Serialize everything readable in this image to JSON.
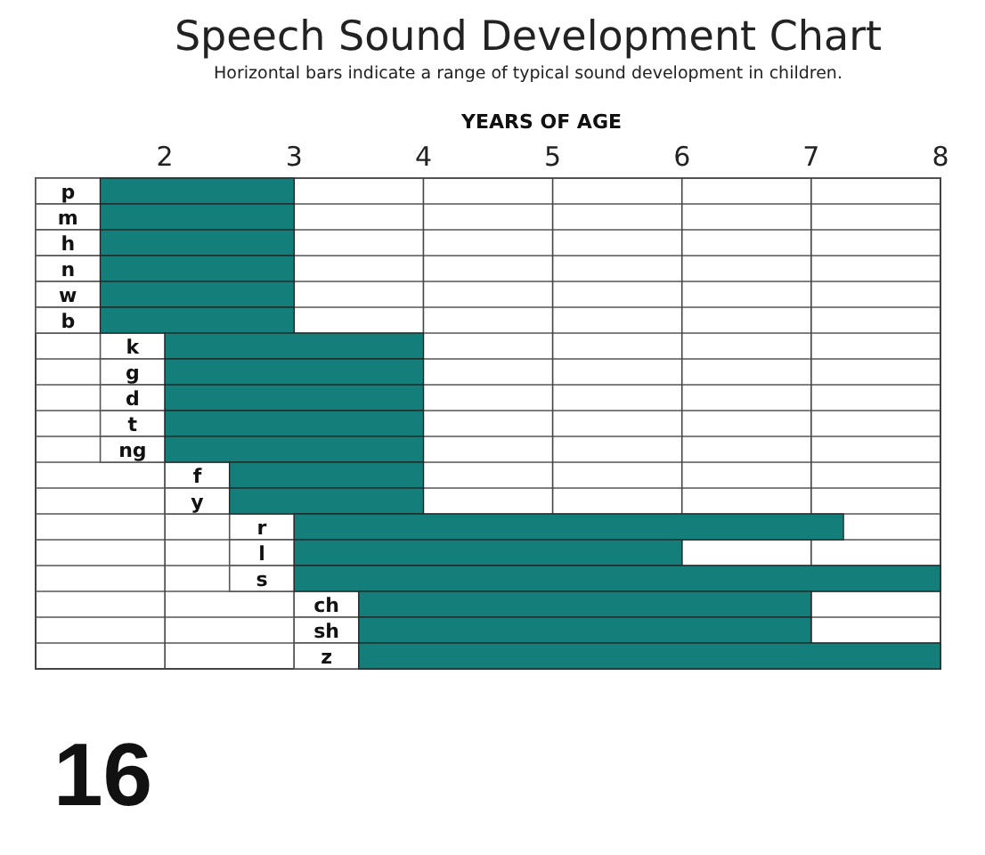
{
  "chart_data": {
    "type": "bar",
    "orientation": "horizontal",
    "title": "Speech Sound Development Chart",
    "subtitle": "Horizontal bars indicate a range of typical sound development in children.",
    "xlabel": "YEARS OF AGE",
    "categories": [
      "p",
      "m",
      "h",
      "n",
      "w",
      "b",
      "k",
      "g",
      "d",
      "t",
      "ng",
      "f",
      "y",
      "r",
      "l",
      "s",
      "ch",
      "sh",
      "z"
    ],
    "base": [
      1.5,
      1.5,
      1.5,
      1.5,
      1.5,
      1.5,
      2,
      2,
      2,
      2,
      2,
      2.5,
      2.5,
      3,
      3,
      3,
      3.5,
      3.5,
      3.5
    ],
    "values": [
      1.5,
      1.5,
      1.5,
      1.5,
      1.5,
      1.5,
      2,
      2,
      2,
      2,
      2,
      1.5,
      1.5,
      4.25,
      3,
      5,
      3.5,
      3.5,
      4.5
    ],
    "color": "#137e7a",
    "xlim": [
      1,
      8
    ],
    "xticks": [
      2,
      3,
      4,
      5,
      6,
      7,
      8
    ],
    "grid": "x",
    "annotations": [
      "16"
    ]
  }
}
